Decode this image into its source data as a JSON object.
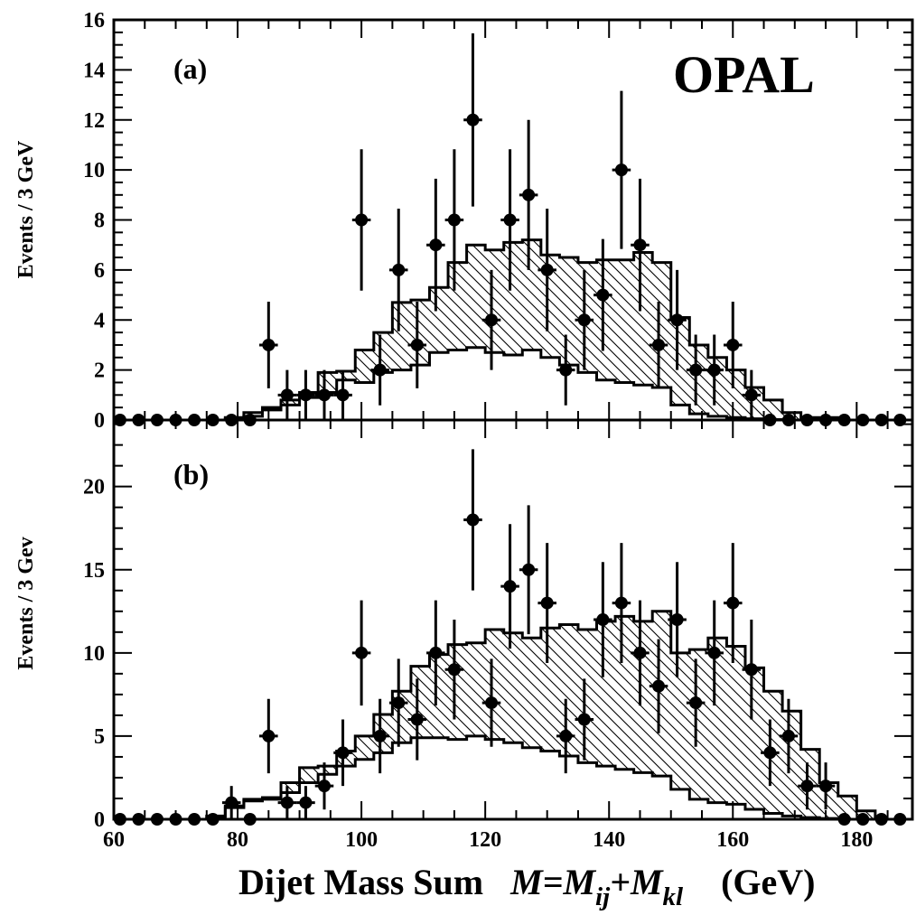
{
  "chart_data": [
    {
      "type": "histogram",
      "panel_label": "(a)",
      "experiment_label": "OPAL",
      "ylabel": "Events / 3 GeV",
      "ylim": [
        0,
        16
      ],
      "yticks": [
        0,
        2,
        4,
        6,
        8,
        10,
        12,
        14,
        16
      ],
      "bin_edges": [
        60,
        63,
        66,
        69,
        72,
        75,
        78,
        81,
        84,
        87,
        90,
        93,
        96,
        99,
        102,
        105,
        108,
        111,
        114,
        117,
        120,
        123,
        126,
        129,
        132,
        135,
        138,
        141,
        144,
        147,
        150,
        153,
        156,
        159,
        162,
        165,
        168,
        171,
        174,
        177,
        180,
        183,
        186,
        189
      ],
      "series": [
        {
          "role": "total_expectation",
          "values": [
            0,
            0,
            0,
            0,
            0,
            0,
            0.1,
            0.3,
            0.5,
            0.8,
            1.1,
            1.9,
            1.95,
            2.8,
            3.5,
            4.7,
            4.8,
            5.3,
            6.3,
            7.0,
            6.8,
            7.1,
            7.2,
            6.6,
            6.5,
            6.3,
            6.4,
            6.4,
            6.7,
            6.3,
            4.1,
            3.0,
            2.5,
            2.0,
            1.3,
            0.8,
            0.3,
            0.1,
            0.1,
            0,
            0,
            0,
            0
          ]
        },
        {
          "role": "background",
          "values": [
            0,
            0,
            0,
            0,
            0,
            0,
            0.05,
            0.15,
            0.4,
            0.6,
            0.9,
            1.1,
            1.6,
            1.5,
            1.9,
            2.0,
            2.2,
            2.7,
            2.8,
            2.9,
            2.7,
            2.6,
            2.8,
            2.5,
            2.2,
            1.9,
            1.6,
            1.5,
            1.4,
            1.3,
            0.6,
            0.25,
            0.15,
            0.1,
            0.05,
            0.02,
            0,
            0,
            0,
            0,
            0,
            0,
            0
          ]
        },
        {
          "role": "data",
          "x": [
            61,
            64,
            67,
            70,
            73,
            76,
            79,
            82,
            85,
            88,
            91,
            94,
            97,
            100,
            103,
            106,
            109,
            112,
            115,
            118,
            121,
            124,
            127,
            130,
            133,
            136,
            139,
            142,
            145,
            148,
            151,
            154,
            157,
            160,
            163,
            166,
            169,
            172,
            175,
            178,
            181,
            184,
            187
          ],
          "y": [
            0,
            0,
            0,
            0,
            0,
            0,
            0,
            0,
            3,
            1,
            1,
            1,
            1,
            8,
            2,
            6,
            3,
            7,
            8,
            12,
            4,
            8,
            9,
            6,
            2,
            4,
            5,
            10,
            7,
            3,
            4,
            2,
            2,
            3,
            1,
            0,
            0,
            0,
            0,
            0,
            0,
            0,
            0
          ]
        }
      ]
    },
    {
      "type": "histogram",
      "panel_label": "(b)",
      "ylabel": "Events / 3 Gev",
      "ylim": [
        0,
        24
      ],
      "yticks": [
        0,
        5,
        10,
        15,
        20
      ],
      "xlabel": "Dijet Mass Sum",
      "xlabel_formula": [
        "M",
        "=M",
        "ij",
        "+M",
        "kl"
      ],
      "xlabel_unit": "(GeV)",
      "xlim": [
        60,
        189
      ],
      "xticks": [
        60,
        80,
        100,
        120,
        140,
        160,
        180
      ],
      "bin_edges": [
        60,
        63,
        66,
        69,
        72,
        75,
        78,
        81,
        84,
        87,
        90,
        93,
        96,
        99,
        102,
        105,
        108,
        111,
        114,
        117,
        120,
        123,
        126,
        129,
        132,
        135,
        138,
        141,
        144,
        147,
        150,
        153,
        156,
        159,
        162,
        165,
        168,
        171,
        174,
        177,
        180,
        183,
        186,
        189
      ],
      "series": [
        {
          "role": "total_expectation",
          "values": [
            0,
            0,
            0,
            0,
            0,
            0.2,
            0.8,
            1.2,
            1.3,
            2.2,
            3.1,
            3.2,
            4.1,
            5.0,
            6.3,
            7.7,
            9.2,
            9.9,
            10.5,
            10.6,
            11.4,
            11.2,
            10.9,
            11.5,
            11.7,
            11.4,
            11.9,
            12.2,
            11.9,
            12.5,
            10.0,
            10.2,
            10.9,
            10.4,
            9.1,
            7.7,
            6.5,
            4.2,
            2.2,
            1.4,
            0.5,
            0,
            0
          ]
        },
        {
          "role": "background",
          "values": [
            0,
            0,
            0,
            0,
            0,
            0.1,
            0.7,
            1.1,
            1.2,
            1.6,
            2.2,
            2.7,
            3.2,
            3.6,
            4.0,
            4.6,
            4.9,
            4.9,
            4.8,
            5.0,
            4.8,
            4.6,
            4.3,
            4.1,
            3.8,
            3.4,
            3.2,
            3.0,
            2.8,
            2.6,
            1.8,
            1.2,
            1.0,
            0.9,
            0.6,
            0.35,
            0.2,
            0.1,
            0.05,
            0,
            0,
            0,
            0
          ]
        },
        {
          "role": "data",
          "x": [
            61,
            64,
            67,
            70,
            73,
            76,
            79,
            82,
            85,
            88,
            91,
            94,
            97,
            100,
            103,
            106,
            109,
            112,
            115,
            118,
            121,
            124,
            127,
            130,
            133,
            136,
            139,
            142,
            145,
            148,
            151,
            154,
            157,
            160,
            163,
            166,
            169,
            172,
            175,
            178,
            181,
            184,
            187
          ],
          "y": [
            0,
            0,
            0,
            0,
            0,
            0,
            1,
            0,
            5,
            1,
            1,
            2,
            4,
            10,
            5,
            7,
            6,
            10,
            9,
            18,
            7,
            14,
            15,
            13,
            5,
            6,
            12,
            13,
            10,
            8,
            12,
            7,
            10,
            13,
            9,
            4,
            5,
            2,
            2,
            0,
            0,
            0,
            0
          ]
        }
      ]
    }
  ]
}
